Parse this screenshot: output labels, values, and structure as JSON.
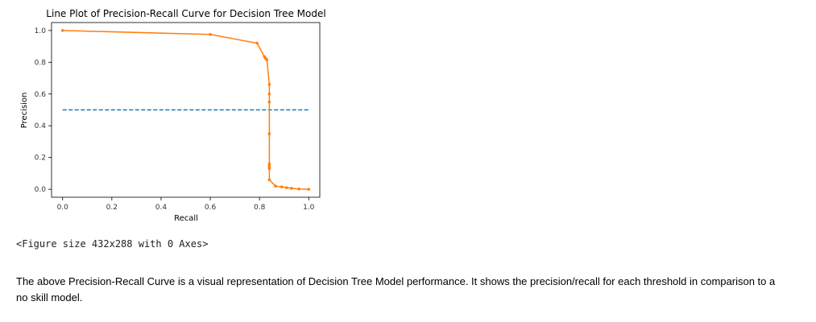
{
  "chart_data": {
    "type": "line",
    "title": "Line Plot of Precision-Recall Curve for Decision Tree Model",
    "xlabel": "Recall",
    "ylabel": "Precision",
    "xlim": [
      -0.045,
      1.045
    ],
    "ylim": [
      -0.05,
      1.05
    ],
    "xticks": [
      0.0,
      0.2,
      0.4,
      0.6,
      0.8,
      1.0
    ],
    "xtick_labels": [
      "0.0",
      "0.2",
      "0.4",
      "0.6",
      "0.8",
      "1.0"
    ],
    "yticks": [
      0.0,
      0.2,
      0.4,
      0.6,
      0.8,
      1.0
    ],
    "ytick_labels": [
      "0.0",
      "0.2",
      "0.4",
      "0.6",
      "0.8",
      "1.0"
    ],
    "grid": false,
    "series": [
      {
        "style": "dashed",
        "color": "#1f77b4",
        "x": [
          0.0,
          1.0
        ],
        "y": [
          0.5,
          0.5
        ]
      },
      {
        "style": "solid-with-markers",
        "color": "#ff7f0e",
        "x": [
          0.0,
          0.6,
          0.79,
          0.82,
          0.822,
          0.825,
          0.83,
          0.84,
          0.84,
          0.84,
          0.84,
          0.84,
          0.84,
          0.84,
          0.84,
          0.84,
          0.865,
          0.89,
          0.91,
          0.93,
          0.96,
          1.0
        ],
        "y": [
          1.0,
          0.975,
          0.92,
          0.835,
          0.83,
          0.825,
          0.815,
          0.66,
          0.6,
          0.55,
          0.35,
          0.16,
          0.15,
          0.14,
          0.13,
          0.06,
          0.02,
          0.015,
          0.01,
          0.006,
          0.002,
          0.0
        ]
      }
    ]
  },
  "output": {
    "figure_repr": "<Figure size 432x288 with 0 Axes>",
    "description": "The above Precision-Recall Curve is a visual representation of Decision Tree Model performance. It shows the precision/recall for each threshold in comparison to a no skill model."
  }
}
